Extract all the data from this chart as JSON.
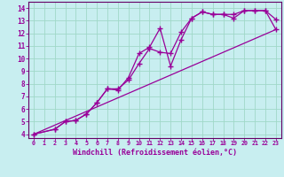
{
  "background_color": "#c8eef0",
  "grid_color": "#a0d8c8",
  "line_color": "#990099",
  "marker": "+",
  "markersize": 4,
  "markeredgewidth": 1.0,
  "linewidth": 0.9,
  "xlabel": "Windchill (Refroidissement éolien,°C)",
  "xlabel_fontsize": 6.0,
  "xtick_fontsize": 4.8,
  "ytick_fontsize": 5.5,
  "xlim": [
    -0.5,
    23.5
  ],
  "ylim": [
    3.7,
    14.5
  ],
  "xticks": [
    0,
    1,
    2,
    3,
    4,
    5,
    6,
    7,
    8,
    9,
    10,
    11,
    12,
    13,
    14,
    15,
    16,
    17,
    18,
    19,
    20,
    21,
    22,
    23
  ],
  "yticks": [
    4,
    5,
    6,
    7,
    8,
    9,
    10,
    11,
    12,
    13,
    14
  ],
  "line1_x": [
    0,
    2,
    3,
    4,
    5,
    6,
    7,
    8,
    9,
    10,
    11,
    12,
    13,
    14,
    15,
    16,
    17,
    18,
    19,
    20,
    21,
    22,
    23
  ],
  "line1_y": [
    4.0,
    4.4,
    5.0,
    5.1,
    5.6,
    6.5,
    7.6,
    7.5,
    8.5,
    10.4,
    10.9,
    12.4,
    9.4,
    11.5,
    13.2,
    13.7,
    13.5,
    13.5,
    13.5,
    13.8,
    13.8,
    13.8,
    13.1
  ],
  "line2_x": [
    0,
    2,
    3,
    4,
    5,
    6,
    7,
    8,
    9,
    10,
    11,
    12,
    13,
    14,
    15,
    16,
    17,
    18,
    19,
    20,
    21,
    22,
    23
  ],
  "line2_y": [
    4.0,
    4.4,
    5.0,
    5.1,
    5.6,
    6.5,
    7.6,
    7.6,
    8.3,
    9.6,
    10.8,
    10.5,
    10.4,
    12.1,
    13.2,
    13.7,
    13.5,
    13.5,
    13.2,
    13.8,
    13.8,
    13.8,
    12.3
  ],
  "line3_x": [
    0,
    23
  ],
  "line3_y": [
    4.0,
    12.3
  ],
  "spine_color": "#660066"
}
